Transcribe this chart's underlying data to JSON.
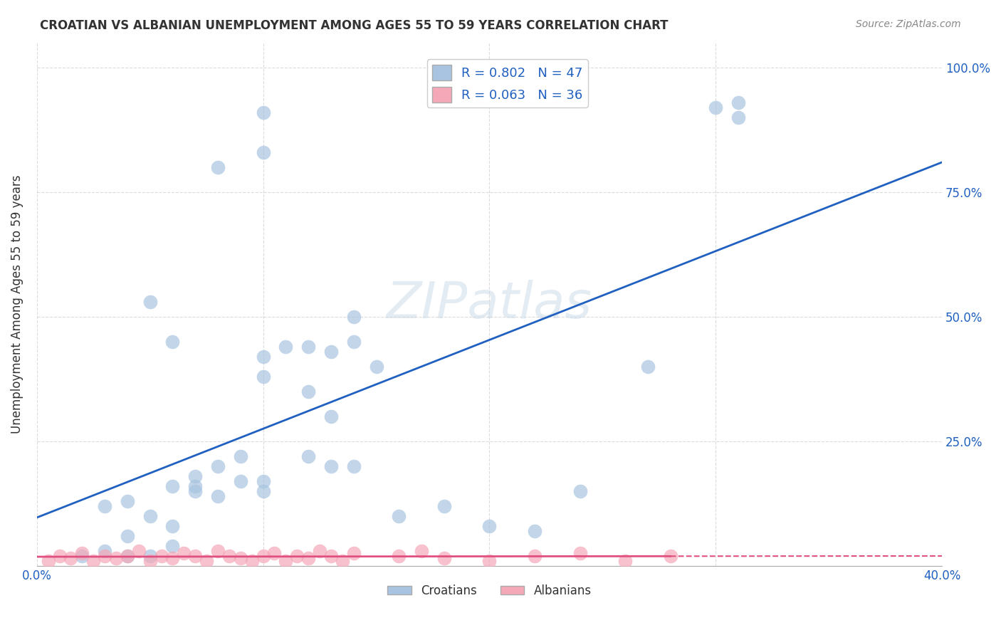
{
  "title": "CROATIAN VS ALBANIAN UNEMPLOYMENT AMONG AGES 55 TO 59 YEARS CORRELATION CHART",
  "source": "Source: ZipAtlas.com",
  "ylabel_label": "Unemployment Among Ages 55 to 59 years",
  "xlim": [
    0.0,
    0.4
  ],
  "ylim": [
    0.0,
    1.05
  ],
  "croatian_R": 0.802,
  "croatian_N": 47,
  "albanian_R": 0.063,
  "albanian_N": 36,
  "croatian_color": "#a8c4e0",
  "albanian_color": "#f4a8b8",
  "croatian_line_color": "#2060c0",
  "albanian_line_color": "#e05080",
  "background_color": "#ffffff",
  "croatian_x": [
    0.02,
    0.03,
    0.04,
    0.05,
    0.06,
    0.04,
    0.06,
    0.07,
    0.07,
    0.08,
    0.09,
    0.1,
    0.1,
    0.11,
    0.12,
    0.13,
    0.14,
    0.14,
    0.15,
    0.16,
    0.05,
    0.06,
    0.08,
    0.1,
    0.12,
    0.12,
    0.14,
    0.1,
    0.07,
    0.08,
    0.09,
    0.06,
    0.05,
    0.04,
    0.03,
    0.1,
    0.27,
    0.31,
    0.1,
    0.13,
    0.3,
    0.31,
    0.2,
    0.18,
    0.22,
    0.24,
    0.13
  ],
  "croatian_y": [
    0.02,
    0.03,
    0.02,
    0.02,
    0.04,
    0.06,
    0.08,
    0.16,
    0.18,
    0.2,
    0.22,
    0.17,
    0.42,
    0.44,
    0.35,
    0.43,
    0.45,
    0.5,
    0.4,
    0.1,
    0.53,
    0.45,
    0.8,
    0.38,
    0.22,
    0.44,
    0.2,
    0.15,
    0.15,
    0.14,
    0.17,
    0.16,
    0.1,
    0.13,
    0.12,
    0.83,
    0.4,
    0.9,
    0.91,
    0.2,
    0.92,
    0.93,
    0.08,
    0.12,
    0.07,
    0.15,
    0.3
  ],
  "albanian_x": [
    0.005,
    0.01,
    0.015,
    0.02,
    0.025,
    0.03,
    0.035,
    0.04,
    0.045,
    0.05,
    0.055,
    0.06,
    0.065,
    0.07,
    0.075,
    0.08,
    0.085,
    0.09,
    0.095,
    0.1,
    0.105,
    0.11,
    0.115,
    0.12,
    0.125,
    0.13,
    0.135,
    0.14,
    0.16,
    0.17,
    0.18,
    0.2,
    0.22,
    0.24,
    0.26,
    0.28
  ],
  "albanian_y": [
    0.01,
    0.02,
    0.015,
    0.025,
    0.01,
    0.02,
    0.015,
    0.02,
    0.03,
    0.01,
    0.02,
    0.015,
    0.025,
    0.02,
    0.01,
    0.03,
    0.02,
    0.015,
    0.01,
    0.02,
    0.025,
    0.01,
    0.02,
    0.015,
    0.03,
    0.02,
    0.01,
    0.025,
    0.02,
    0.03,
    0.015,
    0.01,
    0.02,
    0.025,
    0.01,
    0.02
  ]
}
